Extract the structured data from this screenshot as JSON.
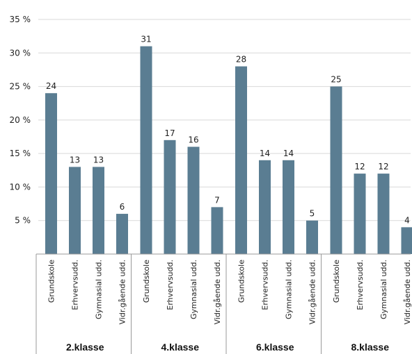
{
  "chart_data": {
    "type": "bar",
    "title": "",
    "xlabel": "",
    "ylabel": "",
    "ylim": [
      0,
      35
    ],
    "yticks": [
      5,
      10,
      15,
      20,
      25,
      30,
      35
    ],
    "ytick_labels": [
      "5 %",
      "10 %",
      "15 %",
      "20 %",
      "25 %",
      "30 %",
      "35 %"
    ],
    "grid": true,
    "bar_color": "#5a7d92",
    "groups": [
      {
        "label": "2.klasse",
        "categories": [
          "Grundskole",
          "Erhvervsudd.",
          "Gymnasial udd.",
          "Vidr.gående udd."
        ],
        "values": [
          24,
          13,
          13,
          6
        ]
      },
      {
        "label": "4.klasse",
        "categories": [
          "Grundskole",
          "Erhvervsudd.",
          "Gymnasial udd.",
          "Vidr.gående udd."
        ],
        "values": [
          31,
          17,
          16,
          7
        ]
      },
      {
        "label": "6.klasse",
        "categories": [
          "Grundskole",
          "Erhvervsudd.",
          "Gymnasial udd.",
          "Vidr.gående udd."
        ],
        "values": [
          28,
          14,
          14,
          5
        ]
      },
      {
        "label": "8.klasse",
        "categories": [
          "Grundskole",
          "Erhvervsudd.",
          "Gymnasial udd.",
          "Vidr.gående udd."
        ],
        "values": [
          25,
          12,
          12,
          4
        ]
      }
    ]
  }
}
